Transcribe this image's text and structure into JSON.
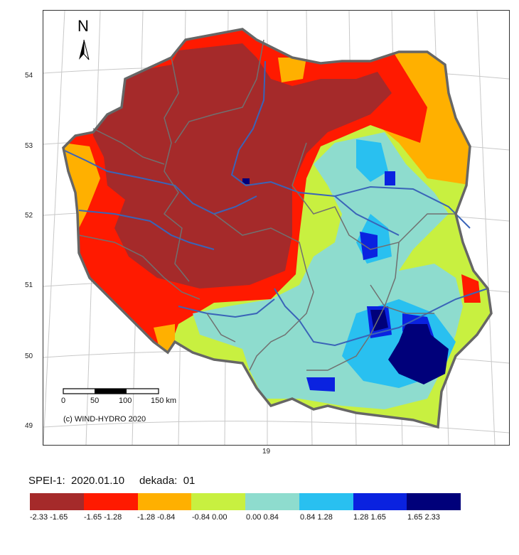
{
  "map": {
    "lat_labels": [
      "54",
      "53",
      "52",
      "51",
      "50",
      "49"
    ],
    "lon_label": "19",
    "north_label": "N",
    "scale_labels": [
      "0",
      "50",
      "100",
      "150 km"
    ],
    "copyright": "(c) WIND-HYDRO 2020"
  },
  "title": {
    "index": "SPEI-1:",
    "date": "2020.01.10",
    "dekada_label": "dekada:",
    "dekada_value": "01"
  },
  "legend": {
    "classes": [
      {
        "label": "-2.33  -1.65",
        "color": "#a52a2a"
      },
      {
        "label": "-1.65  -1.28",
        "color": "#ff1a00"
      },
      {
        "label": "-1.28  -0.84",
        "color": "#ffb000"
      },
      {
        "label": "-0.84  0.00",
        "color": "#c8f040"
      },
      {
        "label": "0.00  0.84",
        "color": "#8edcce"
      },
      {
        "label": "0.84  1.28",
        "color": "#29c0f0"
      },
      {
        "label": "1.28  1.65",
        "color": "#0a22e0"
      },
      {
        "label": "1.65  2.33",
        "color": "#00007a"
      }
    ]
  },
  "colors": {
    "border": "#666666",
    "river": "#3a64b8",
    "graticule": "#c8c8c8"
  }
}
